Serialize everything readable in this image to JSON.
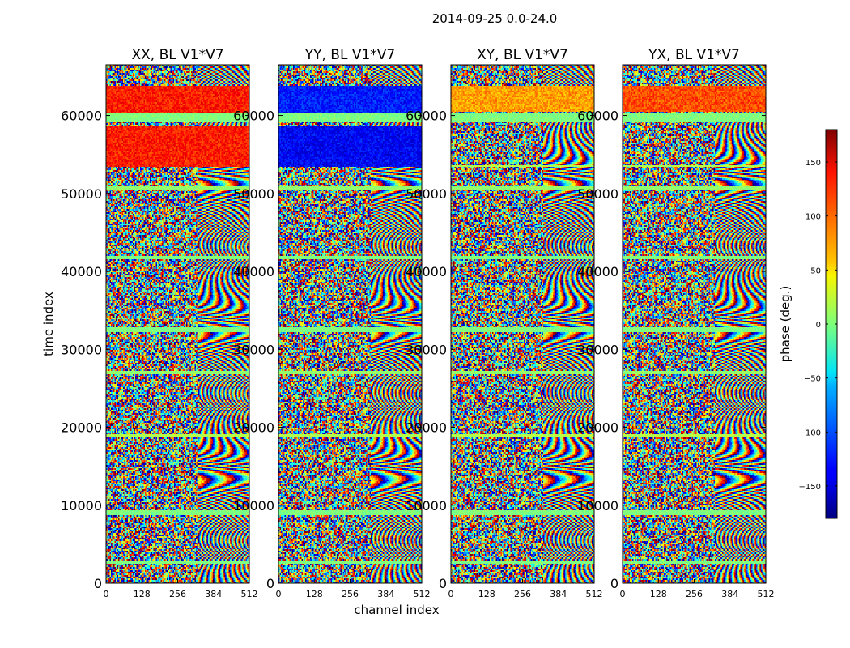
{
  "chart_data": {
    "type": "heatmap",
    "suptitle": "2014-09-25 0.0-24.0",
    "xlabel": "channel index",
    "ylabel": "time index",
    "xlim": [
      0,
      512
    ],
    "ylim": [
      0,
      66500
    ],
    "xticks": [
      0,
      128,
      256,
      384,
      512
    ],
    "yticks": [
      0,
      10000,
      20000,
      30000,
      40000,
      50000,
      60000
    ],
    "ytick_labels": [
      "0",
      "10000",
      "20000",
      "30000",
      "40000",
      "50000",
      "60000"
    ],
    "panels": [
      {
        "title": "XX, BL V1*V7",
        "polarization": "XX"
      },
      {
        "title": "YY, BL V1*V7",
        "polarization": "YY"
      },
      {
        "title": "XY, BL V1*V7",
        "polarization": "XY"
      },
      {
        "title": "YX, BL V1*V7",
        "polarization": "YX"
      }
    ],
    "colorbar": {
      "label": "phase (deg.)",
      "range": [
        -180,
        180
      ],
      "ticks": [
        -150,
        -100,
        -50,
        0,
        50,
        100,
        150
      ],
      "tick_labels": [
        "−150",
        "−100",
        "−50",
        "0",
        "50",
        "100",
        "150"
      ],
      "colormap": "jet"
    }
  }
}
